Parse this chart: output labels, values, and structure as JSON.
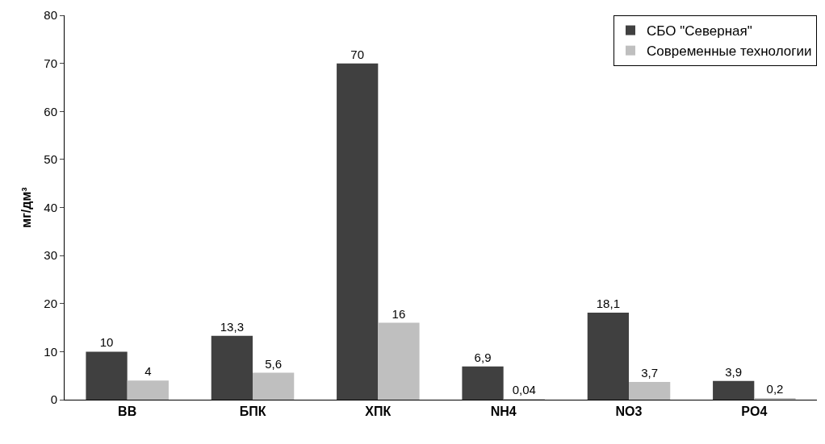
{
  "chart_data": {
    "type": "bar",
    "ylabel": "мг/дм³",
    "categories": [
      "ВВ",
      "БПК",
      "ХПК",
      "NH4",
      "NO3",
      "PO4"
    ],
    "series": [
      {
        "name": "СБО \"Северная\"",
        "color": "#404040",
        "values": [
          10,
          13.3,
          70,
          6.9,
          18.1,
          3.9
        ],
        "value_labels": [
          "10",
          "13,3",
          "70",
          "6,9",
          "18,1",
          "3,9"
        ]
      },
      {
        "name": "Современные технологии",
        "color": "#bfbfbf",
        "values": [
          4,
          5.6,
          16,
          0.04,
          3.7,
          0.2
        ],
        "value_labels": [
          "4",
          "5,6",
          "16",
          "0,04",
          "3,7",
          "0,2"
        ]
      }
    ],
    "ylim": [
      0,
      80
    ],
    "yticks": [
      0,
      10,
      20,
      30,
      40,
      50,
      60,
      70,
      80
    ],
    "grid": false,
    "legend": "top right"
  }
}
